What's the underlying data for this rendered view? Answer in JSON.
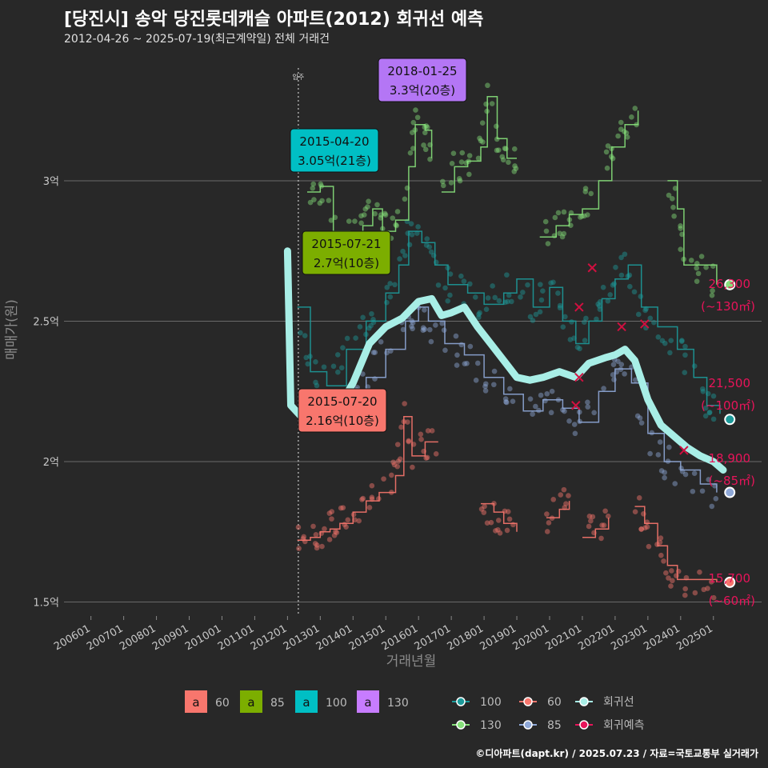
{
  "title": "[당진시] 송악 당진롯데캐슬 아파트(2012) 회귀선 예측",
  "subtitle": "2012-04-26 ~ 2025-07-19(최근계약일) 전체 거래건",
  "caption": "©디아파트(dapt.kr) / 2025.07.23 / 자료=국토교통부 실거래가",
  "chart_data": {
    "type": "line",
    "xlabel": "거래년월",
    "ylabel": "매매가(원)",
    "x_ticks": [
      "200601",
      "200701",
      "200801",
      "200901",
      "201001",
      "201101",
      "201201",
      "201301",
      "201401",
      "201501",
      "201601",
      "201701",
      "201801",
      "201901",
      "202001",
      "202101",
      "202201",
      "202301",
      "202401",
      "202501"
    ],
    "y_ticks": [
      {
        "value": 1.5,
        "label": "1.5억"
      },
      {
        "value": 2,
        "label": "2억"
      },
      {
        "value": 2.5,
        "label": "2.5억"
      },
      {
        "value": 3,
        "label": "3억"
      }
    ],
    "ylim": [
      1.45,
      3.45
    ],
    "grid": "horizontal",
    "vline": {
      "x": 2012.33,
      "label": "입주"
    },
    "colors": {
      "60": "#f8766d",
      "85": "#8fa8d8",
      "100": "#1c9a9a",
      "130": "#86e07a",
      "regression": "#a8eee6",
      "prediction": "#e8145a"
    },
    "series": [
      {
        "name": "60",
        "points": [
          [
            2012.3,
            1.72
          ],
          [
            2012.7,
            1.73
          ],
          [
            2013.0,
            1.75
          ],
          [
            2013.3,
            1.76
          ],
          [
            2013.6,
            1.78
          ],
          [
            2014.0,
            1.82
          ],
          [
            2014.4,
            1.86
          ],
          [
            2014.8,
            1.89
          ],
          [
            2015.3,
            1.95
          ],
          [
            2015.55,
            2.16
          ],
          [
            2015.8,
            2.02
          ],
          [
            2016.2,
            2.07
          ],
          [
            2016.6,
            2.07
          ]
        ]
      },
      {
        "name": "60",
        "points": [
          [
            2017.9,
            1.85
          ],
          [
            2018.3,
            1.82
          ],
          [
            2018.6,
            1.78
          ],
          [
            2019.0,
            1.75
          ]
        ]
      },
      {
        "name": "60",
        "points": [
          [
            2019.9,
            1.8
          ],
          [
            2020.3,
            1.83
          ],
          [
            2020.6,
            1.86
          ]
        ]
      },
      {
        "name": "60",
        "points": [
          [
            2021.0,
            1.73
          ],
          [
            2021.4,
            1.76
          ],
          [
            2021.8,
            1.8
          ]
        ]
      },
      {
        "name": "60",
        "points": [
          [
            2022.6,
            1.84
          ],
          [
            2022.9,
            1.78
          ],
          [
            2023.3,
            1.7
          ],
          [
            2023.6,
            1.63
          ],
          [
            2023.9,
            1.58
          ],
          [
            2024.5,
            1.58
          ],
          [
            2025.1,
            1.57
          ]
        ]
      },
      {
        "name": "85",
        "points": [
          [
            2012.5,
            2.22
          ],
          [
            2012.8,
            2.16
          ],
          [
            2013.3,
            2.15
          ],
          [
            2013.8,
            2.2
          ],
          [
            2014.4,
            2.3
          ],
          [
            2015.0,
            2.4
          ],
          [
            2015.6,
            2.5
          ],
          [
            2016.0,
            2.55
          ],
          [
            2016.3,
            2.5
          ],
          [
            2016.8,
            2.42
          ],
          [
            2017.4,
            2.38
          ],
          [
            2018.0,
            2.3
          ],
          [
            2018.6,
            2.24
          ],
          [
            2019.2,
            2.18
          ],
          [
            2019.8,
            2.22
          ],
          [
            2020.4,
            2.19
          ],
          [
            2020.9,
            2.14
          ],
          [
            2021.5,
            2.25
          ],
          [
            2022.0,
            2.33
          ],
          [
            2022.5,
            2.28
          ],
          [
            2023.0,
            2.1
          ],
          [
            2023.5,
            2.0
          ],
          [
            2024.0,
            1.97
          ],
          [
            2024.6,
            1.92
          ],
          [
            2025.1,
            1.89
          ]
        ]
      },
      {
        "name": "100",
        "points": [
          [
            2012.3,
            2.55
          ],
          [
            2012.7,
            2.32
          ],
          [
            2013.2,
            2.27
          ],
          [
            2013.8,
            2.4
          ],
          [
            2014.4,
            2.5
          ],
          [
            2015.0,
            2.6
          ],
          [
            2015.4,
            2.7
          ],
          [
            2015.7,
            2.82
          ],
          [
            2016.1,
            2.78
          ],
          [
            2016.5,
            2.7
          ],
          [
            2016.9,
            2.63
          ],
          [
            2017.5,
            2.6
          ],
          [
            2018.0,
            2.56
          ],
          [
            2018.6,
            2.6
          ],
          [
            2019.0,
            2.65
          ],
          [
            2019.5,
            2.55
          ],
          [
            2020.0,
            2.62
          ],
          [
            2020.4,
            2.5
          ],
          [
            2020.8,
            2.42
          ],
          [
            2021.2,
            2.5
          ],
          [
            2021.6,
            2.58
          ],
          [
            2022.0,
            2.65
          ],
          [
            2022.4,
            2.7
          ],
          [
            2022.8,
            2.55
          ],
          [
            2023.3,
            2.48
          ],
          [
            2023.9,
            2.4
          ],
          [
            2024.4,
            2.3
          ],
          [
            2024.8,
            2.2
          ],
          [
            2025.2,
            2.17
          ]
        ]
      },
      {
        "name": "130",
        "points": [
          [
            2012.6,
            2.96
          ],
          [
            2013.0,
            2.98
          ],
          [
            2013.4,
            2.82
          ],
          [
            2013.9,
            2.81
          ],
          [
            2014.3,
            2.84
          ],
          [
            2014.6,
            2.9
          ],
          [
            2014.9,
            2.82
          ],
          [
            2015.3,
            2.86
          ],
          [
            2015.7,
            3.05
          ],
          [
            2015.9,
            3.2
          ],
          [
            2016.2,
            3.18
          ],
          [
            2016.4,
            3.08
          ]
        ]
      },
      {
        "name": "130",
        "points": [
          [
            2016.7,
            2.96
          ],
          [
            2017.1,
            3.05
          ],
          [
            2017.5,
            3.07
          ],
          [
            2017.9,
            3.12
          ],
          [
            2018.1,
            3.3
          ],
          [
            2018.4,
            3.15
          ],
          [
            2018.7,
            3.08
          ],
          [
            2019.0,
            3.08
          ]
        ]
      },
      {
        "name": "130",
        "points": [
          [
            2019.7,
            2.8
          ],
          [
            2020.2,
            2.84
          ],
          [
            2020.6,
            2.88
          ],
          [
            2021.0,
            2.9
          ],
          [
            2021.5,
            3.0
          ],
          [
            2021.9,
            3.12
          ],
          [
            2022.3,
            3.2
          ],
          [
            2022.7,
            3.25
          ]
        ]
      },
      {
        "name": "130",
        "points": [
          [
            2023.6,
            3.0
          ],
          [
            2023.9,
            2.9
          ],
          [
            2024.1,
            2.7
          ],
          [
            2024.6,
            2.7
          ],
          [
            2025.1,
            2.63
          ]
        ]
      }
    ],
    "regression": [
      [
        2012.0,
        2.75
      ],
      [
        2012.1,
        2.2
      ],
      [
        2012.5,
        2.15
      ],
      [
        2013.0,
        2.14
      ],
      [
        2013.5,
        2.18
      ],
      [
        2014.0,
        2.28
      ],
      [
        2014.5,
        2.42
      ],
      [
        2015.0,
        2.48
      ],
      [
        2015.5,
        2.51
      ],
      [
        2016.0,
        2.57
      ],
      [
        2016.4,
        2.58
      ],
      [
        2016.7,
        2.52
      ],
      [
        2017.0,
        2.53
      ],
      [
        2017.4,
        2.55
      ],
      [
        2017.8,
        2.48
      ],
      [
        2018.2,
        2.42
      ],
      [
        2018.6,
        2.36
      ],
      [
        2019.0,
        2.3
      ],
      [
        2019.4,
        2.29
      ],
      [
        2019.8,
        2.3
      ],
      [
        2020.3,
        2.32
      ],
      [
        2020.8,
        2.3
      ],
      [
        2021.2,
        2.35
      ],
      [
        2021.7,
        2.37
      ],
      [
        2022.0,
        2.38
      ],
      [
        2022.3,
        2.4
      ],
      [
        2022.6,
        2.36
      ],
      [
        2023.0,
        2.22
      ],
      [
        2023.4,
        2.13
      ],
      [
        2023.8,
        2.09
      ],
      [
        2024.2,
        2.05
      ],
      [
        2024.6,
        2.02
      ],
      [
        2025.0,
        2.0
      ],
      [
        2025.3,
        1.97
      ]
    ],
    "prediction_markers": [
      [
        2021.3,
        2.69
      ],
      [
        2020.9,
        2.55
      ],
      [
        2022.2,
        2.48
      ],
      [
        2022.9,
        2.49
      ],
      [
        2020.9,
        2.3
      ],
      [
        2020.8,
        2.2
      ],
      [
        2024.1,
        2.04
      ]
    ],
    "annotations": [
      {
        "date": "2018-01-25",
        "value": "3.3억(20층)",
        "x": 2018.1,
        "y": 3.3,
        "color": "#b476f5"
      },
      {
        "date": "2015-04-20",
        "value": "3.05억(21층)",
        "x": 2015.3,
        "y": 3.05,
        "color": "#00bfc4"
      },
      {
        "date": "2015-07-21",
        "value": "2.7억(10층)",
        "x": 2015.55,
        "y": 2.7,
        "color": "#7cae00"
      },
      {
        "date": "2015-07-20",
        "value": "2.16억(10층)",
        "x": 2015.55,
        "y": 2.16,
        "color": "#f8766d"
      }
    ],
    "predictions": [
      {
        "price": "26,300",
        "area": "(~130㎡)",
        "y": 2.63,
        "color": "#86e07a"
      },
      {
        "price": "21,500",
        "area": "(~100㎡)",
        "y": 2.15,
        "color": "#1c9a9a"
      },
      {
        "price": "18,900",
        "area": "(~85㎡)",
        "y": 1.89,
        "color": "#8fa8d8"
      },
      {
        "price": "15,700",
        "area": "(~60㎡)",
        "y": 1.57,
        "color": "#f8766d"
      }
    ],
    "legend": {
      "label_legend": [
        {
          "glyph": "a",
          "label": "60",
          "color": "#f8766d"
        },
        {
          "glyph": "a",
          "label": "85",
          "color": "#7cae00"
        },
        {
          "glyph": "a",
          "label": "100",
          "color": "#00bfc4"
        },
        {
          "glyph": "a",
          "label": "130",
          "color": "#c77cff"
        }
      ],
      "line_legend": [
        {
          "label": "100",
          "color": "#1c9a9a"
        },
        {
          "label": "60",
          "color": "#f8766d"
        },
        {
          "label": "회귀선",
          "color": "#a8eee6"
        },
        {
          "label": "130",
          "color": "#86e07a"
        },
        {
          "label": "85",
          "color": "#8fa8d8"
        },
        {
          "label": "회귀예측",
          "color": "#e8145a"
        }
      ]
    }
  }
}
